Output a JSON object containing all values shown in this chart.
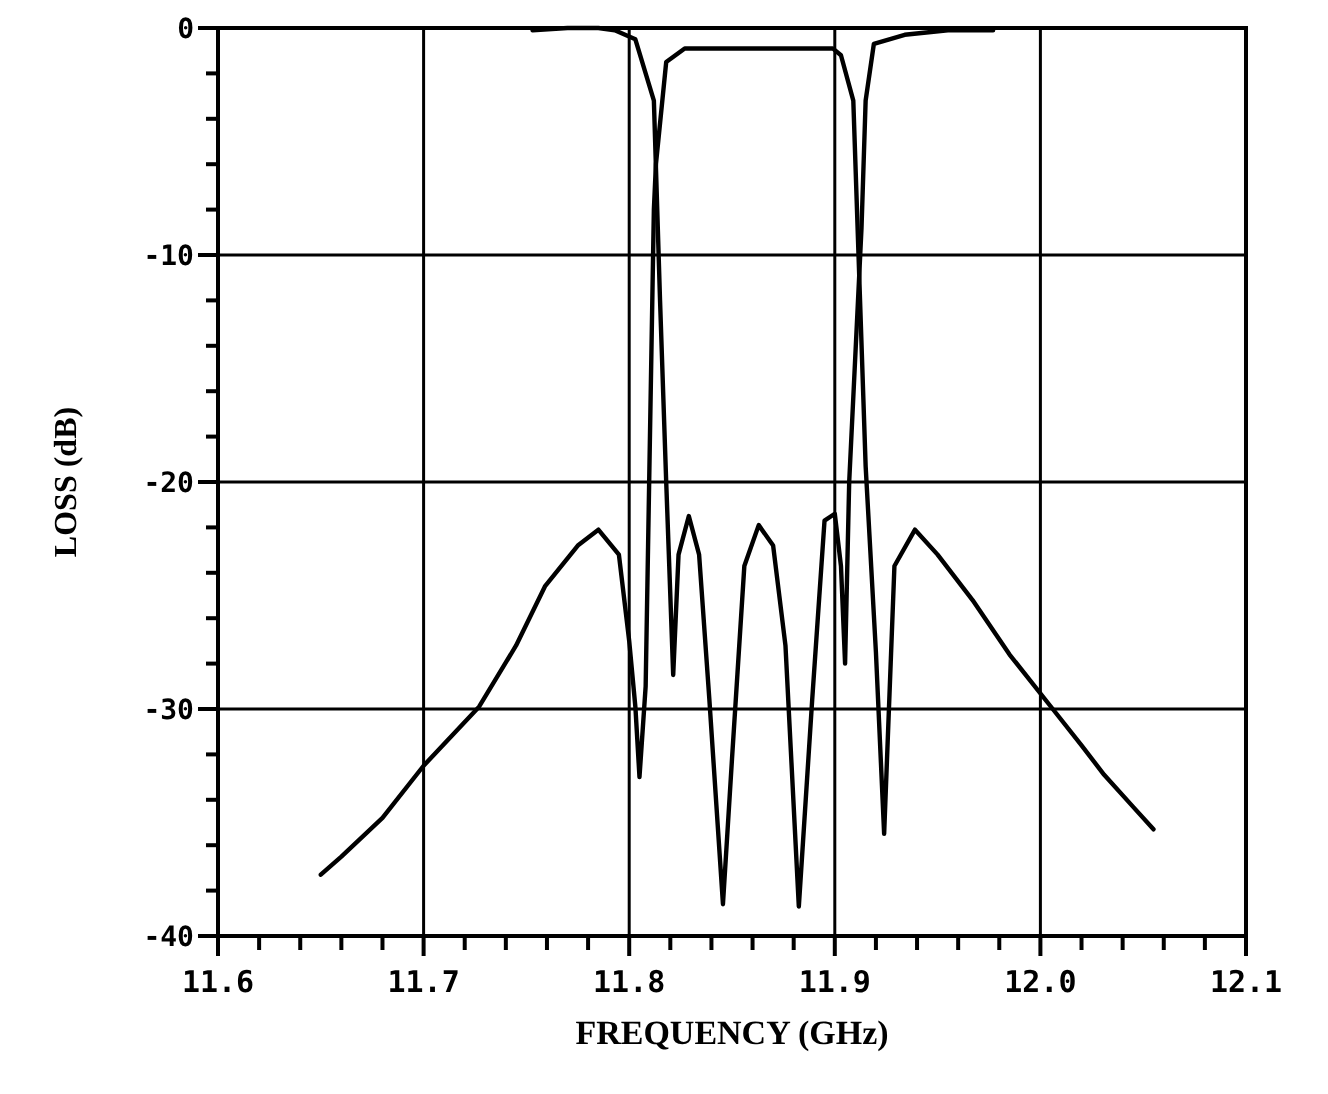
{
  "chart_data": {
    "type": "line",
    "xlabel": "FREQUENCY (GHz)",
    "ylabel": "LOSS (dB)",
    "xlim": [
      11.6,
      12.1
    ],
    "ylim": [
      -40,
      0
    ],
    "xticks": [
      11.6,
      {
        "value": 11.62,
        "label": null
      },
      {
        "value": 11.64,
        "label": null
      },
      {
        "value": 11.66,
        "label": null
      },
      {
        "value": 11.68,
        "label": null
      },
      11.7,
      {
        "value": 11.72,
        "label": null
      },
      {
        "value": 11.74,
        "label": null
      },
      {
        "value": 11.76,
        "label": null
      },
      {
        "value": 11.78,
        "label": null
      },
      11.8,
      {
        "value": 11.82,
        "label": null
      },
      {
        "value": 11.84,
        "label": null
      },
      {
        "value": 11.86,
        "label": null
      },
      {
        "value": 11.88,
        "label": null
      },
      11.9,
      {
        "value": 11.92,
        "label": null
      },
      {
        "value": 11.94,
        "label": null
      },
      {
        "value": 11.96,
        "label": null
      },
      {
        "value": 11.98,
        "label": null
      },
      {
        "value": 12.0,
        "label": "12.0"
      },
      {
        "value": 12.02,
        "label": null
      },
      {
        "value": 12.04,
        "label": null
      },
      {
        "value": 12.06,
        "label": null
      },
      {
        "value": 12.08,
        "label": null
      },
      12.1
    ],
    "yticks": [
      -40,
      {
        "value": -38,
        "label": null
      },
      {
        "value": -36,
        "label": null
      },
      {
        "value": -34,
        "label": null
      },
      {
        "value": -32,
        "label": null
      },
      -30,
      {
        "value": -28,
        "label": null
      },
      {
        "value": -26,
        "label": null
      },
      {
        "value": -24,
        "label": null
      },
      {
        "value": -22,
        "label": null
      },
      -20,
      {
        "value": -18,
        "label": null
      },
      {
        "value": -16,
        "label": null
      },
      {
        "value": -14,
        "label": null
      },
      {
        "value": -12,
        "label": null
      },
      -10,
      {
        "value": -8,
        "label": null
      },
      {
        "value": -6,
        "label": null
      },
      {
        "value": -4,
        "label": null
      },
      {
        "value": -2,
        "label": null
      },
      0
    ],
    "grid": true,
    "marker": "none",
    "line_style": "solid",
    "series": [
      {
        "color": "#000000",
        "x": [
          11.65,
          11.66,
          11.68,
          11.7,
          11.727,
          11.745,
          11.759,
          11.775,
          11.785,
          11.795,
          11.8,
          11.803,
          11.805,
          11.808,
          11.812,
          11.813,
          11.818,
          11.827,
          11.85,
          11.87,
          11.899,
          11.903,
          11.909,
          11.915,
          11.92,
          11.924,
          11.929,
          11.939,
          11.95,
          11.967,
          11.985,
          12.006,
          12.02,
          12.031,
          12.045,
          12.055
        ],
        "values": [
          -37.3,
          -36.5,
          -34.8,
          -32.5,
          -29.9,
          -27.2,
          -24.6,
          -22.8,
          -22.1,
          -23.2,
          -27.0,
          -29.9,
          -33.0,
          -29.0,
          -8.0,
          -6.0,
          -1.5,
          -0.9,
          -0.9,
          -0.9,
          -0.9,
          -1.2,
          -3.2,
          -19.3,
          -27.5,
          -35.5,
          -23.7,
          -22.1,
          -23.2,
          -25.2,
          -27.6,
          -30.0,
          -31.6,
          -32.9,
          -34.3,
          -35.3
        ]
      },
      {
        "color": "#000000",
        "x": [
          11.753,
          11.77,
          11.785,
          11.793,
          11.803,
          11.812,
          11.815,
          11.818,
          11.8214,
          11.824,
          11.829,
          11.834,
          11.839,
          11.8456,
          11.85,
          11.856,
          11.863,
          11.87,
          11.876,
          11.8825,
          11.889,
          11.895,
          11.9,
          11.903,
          11.905,
          11.907,
          11.913,
          11.915,
          11.919,
          11.934,
          11.955,
          11.977
        ],
        "values": [
          -0.1,
          0.0,
          0.0,
          -0.1,
          -0.5,
          -3.2,
          -12.0,
          -20.0,
          -28.5,
          -23.2,
          -21.5,
          -23.2,
          -29.6,
          -38.6,
          -32.2,
          -23.7,
          -21.9,
          -22.8,
          -27.2,
          -38.7,
          -29.6,
          -21.7,
          -21.4,
          -23.7,
          -28.0,
          -20.0,
          -8.8,
          -3.2,
          -0.7,
          -0.3,
          -0.1,
          -0.1
        ]
      }
    ]
  }
}
